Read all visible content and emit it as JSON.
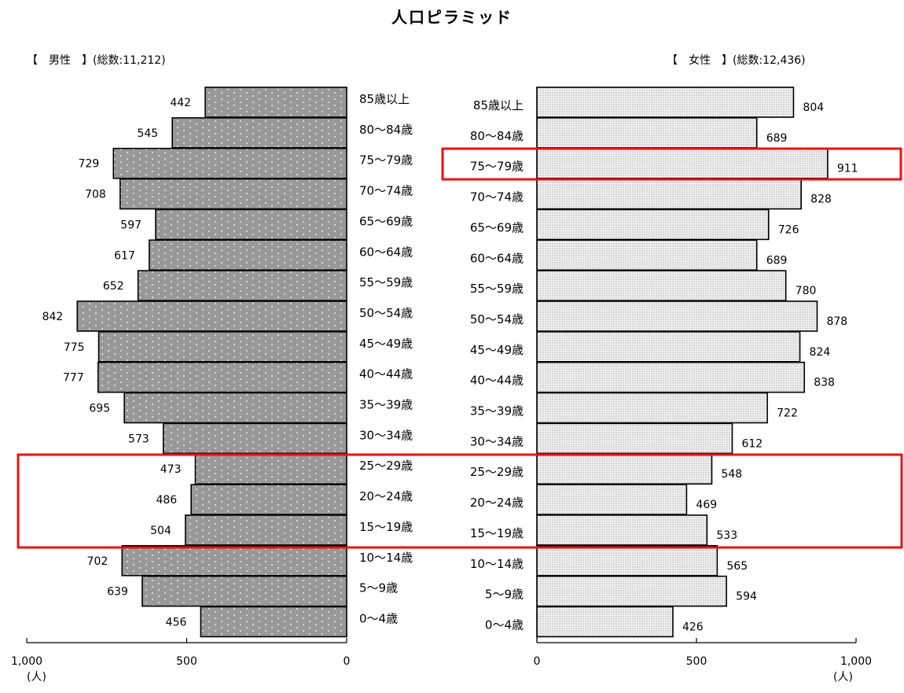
{
  "title": "人口ピラミッド",
  "male": {
    "label": "【　男性　】(総数:11,212)"
  },
  "female": {
    "label": "【　女性　】(総数:12,436)"
  },
  "unit": "(人)",
  "colors": {
    "male_bar": "#999999",
    "female_bar": "#e6e6e6",
    "highlight": "#ee1111"
  },
  "chart_data": {
    "type": "bar",
    "title": "人口ピラミッド",
    "categories": [
      "85歳以上",
      "80～84歳",
      "75～79歳",
      "70～74歳",
      "65～69歳",
      "60～64歳",
      "55～59歳",
      "50～54歳",
      "45～49歳",
      "40～44歳",
      "35～39歳",
      "30～34歳",
      "25～29歳",
      "20～24歳",
      "15～19歳",
      "10～14歳",
      "5～9歳",
      "0～4歳"
    ],
    "series": [
      {
        "name": "男性",
        "values": [
          442,
          545,
          729,
          708,
          597,
          617,
          652,
          842,
          775,
          777,
          695,
          573,
          473,
          486,
          504,
          702,
          639,
          456
        ]
      },
      {
        "name": "女性",
        "values": [
          804,
          689,
          911,
          828,
          726,
          689,
          780,
          878,
          824,
          838,
          722,
          612,
          548,
          469,
          533,
          565,
          594,
          426
        ]
      }
    ],
    "xlim": [
      0,
      1000
    ],
    "ticks": [
      0,
      500,
      1000
    ],
    "tick_labels_male": [
      "0",
      "500",
      "1,000"
    ],
    "tick_labels_female": [
      "0",
      "500",
      "1,000"
    ],
    "highlights": [
      [
        "75～79歳"
      ],
      [
        "25～29歳",
        "20～24歳",
        "15～19歳"
      ]
    ]
  }
}
